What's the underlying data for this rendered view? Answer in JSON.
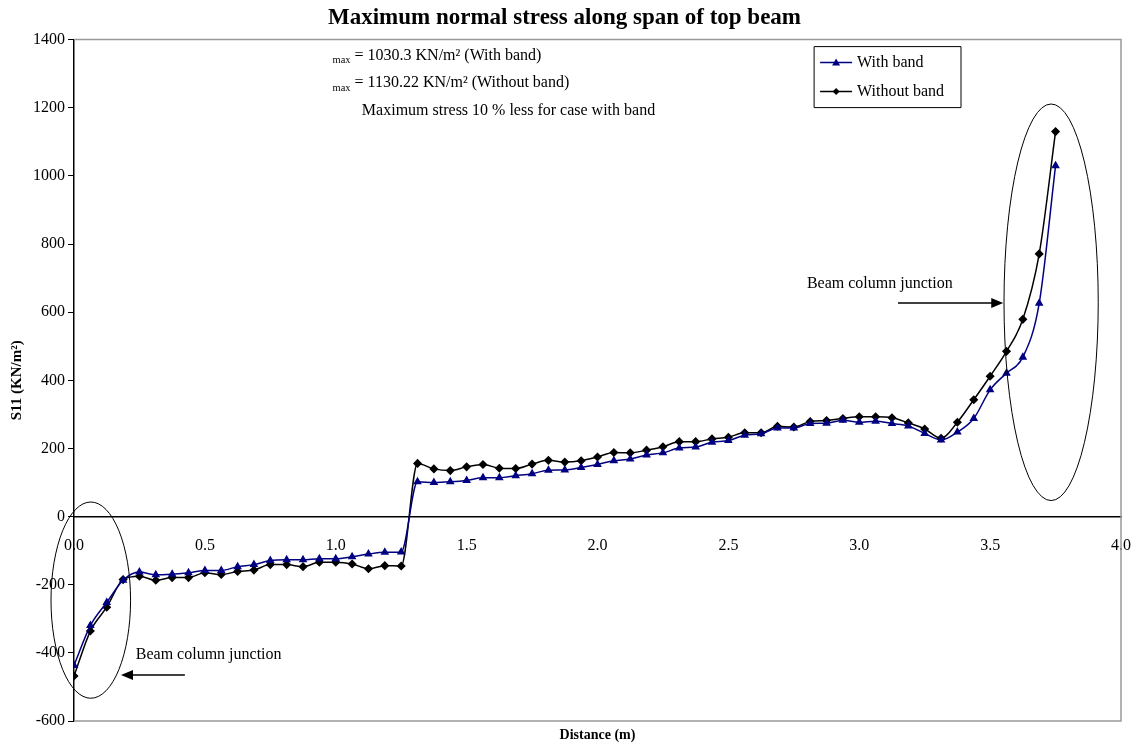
{
  "chart_data": {
    "type": "line",
    "title": "Maximum normal stress along span of top beam",
    "xlabel": "Distance (m)",
    "ylabel": "S11 (KN/m²)",
    "x": [
      0,
      0.0625,
      0.125,
      0.1875,
      0.25,
      0.3125,
      0.375,
      0.4375,
      0.5,
      0.5625,
      0.625,
      0.6875,
      0.75,
      0.8125,
      0.875,
      0.9375,
      1,
      1.0625,
      1.125,
      1.1875,
      1.25,
      1.3125,
      1.375,
      1.4375,
      1.5,
      1.5625,
      1.625,
      1.6875,
      1.75,
      1.8125,
      1.875,
      1.9375,
      2,
      2.0625,
      2.125,
      2.1875,
      2.25,
      2.3125,
      2.375,
      2.4375,
      2.5,
      2.5625,
      2.625,
      2.6875,
      2.75,
      2.8125,
      2.875,
      2.9375,
      3,
      3.0625,
      3.125,
      3.1875,
      3.25,
      3.3125,
      3.375,
      3.4375,
      3.5,
      3.5625,
      3.625,
      3.6875,
      3.75
    ],
    "series": [
      {
        "name": "With band",
        "color": "#000080",
        "marker": "triangle",
        "values": [
          -437,
          -320,
          -252,
          -187,
          -163,
          -171,
          -169,
          -165,
          -158,
          -158,
          -147,
          -141,
          -129,
          -127,
          -127,
          -124,
          -124,
          -118,
          -110,
          -105,
          -104,
          102,
          100,
          102,
          106,
          114,
          114,
          120,
          126,
          136,
          137,
          144,
          153,
          164,
          169,
          181,
          187,
          201,
          204,
          218,
          223,
          239,
          243,
          260,
          260,
          273,
          274,
          283,
          277,
          280,
          273,
          266,
          244,
          225,
          248,
          288,
          372,
          421,
          468,
          626,
          1030
        ]
      },
      {
        "name": "Without band",
        "color": "#000000",
        "marker": "diamond",
        "values": [
          -468,
          -336,
          -266,
          -185,
          -175,
          -187,
          -179,
          -179,
          -165,
          -170,
          -161,
          -157,
          -141,
          -141,
          -147,
          -134,
          -134,
          -139,
          -153,
          -144,
          -145,
          156,
          140,
          135,
          146,
          153,
          142,
          141,
          154,
          165,
          160,
          164,
          175,
          188,
          187,
          195,
          205,
          220,
          220,
          228,
          233,
          246,
          246,
          265,
          263,
          279,
          282,
          288,
          293,
          293,
          290,
          275,
          257,
          230,
          277,
          343,
          412,
          485,
          579,
          771,
          1130
        ]
      }
    ],
    "xlim": [
      0,
      4
    ],
    "xticks": [
      {
        "value": 0,
        "label": "0.0"
      },
      {
        "value": 0.5,
        "label": "0.5"
      },
      {
        "value": 1,
        "label": "1.0"
      },
      {
        "value": 1.5,
        "label": "1.5"
      },
      {
        "value": 2,
        "label": "2.0"
      },
      {
        "value": 2.5,
        "label": "2.5"
      },
      {
        "value": 3,
        "label": "3.0"
      },
      {
        "value": 3.5,
        "label": "3.5"
      },
      {
        "value": 4,
        "label": "4.0"
      }
    ],
    "ylim": [
      -600,
      1400
    ],
    "yticks": [
      -600,
      -400,
      -200,
      0,
      200,
      400,
      600,
      800,
      1000,
      1200,
      1400
    ],
    "grid": false,
    "legend": "top right",
    "line_style": "solid",
    "annotations": [
      "$_{max}$ = 1030.3 KN/m² (With band)",
      "$_{max}$ = 1130.22 KN/m² (Without band)",
      "Maximum stress 10 % less for case with band",
      "Beam column junction",
      "Beam column junction"
    ]
  }
}
